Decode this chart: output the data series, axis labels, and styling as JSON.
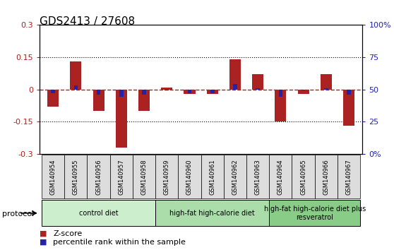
{
  "title": "GDS2413 / 27608",
  "samples": [
    "GSM140954",
    "GSM140955",
    "GSM140956",
    "GSM140957",
    "GSM140958",
    "GSM140959",
    "GSM140960",
    "GSM140961",
    "GSM140962",
    "GSM140963",
    "GSM140964",
    "GSM140965",
    "GSM140966",
    "GSM140967"
  ],
  "zscore": [
    -0.08,
    0.13,
    -0.1,
    -0.27,
    -0.1,
    0.01,
    -0.02,
    -0.02,
    0.14,
    0.07,
    -0.15,
    -0.02,
    0.07,
    -0.17
  ],
  "percentile": [
    47,
    53,
    46,
    44,
    46,
    49,
    47,
    47,
    54,
    51,
    44,
    49,
    51,
    46
  ],
  "bar_color": "#aa2222",
  "dot_color": "#2222aa",
  "ylim": [
    -0.3,
    0.3
  ],
  "yticks": [
    -0.3,
    -0.15,
    0.0,
    0.15,
    0.3
  ],
  "ytick_labels": [
    "-0.3",
    "-0.15",
    "0",
    "0.15",
    "0.3"
  ],
  "right_yticks": [
    0,
    25,
    50,
    75,
    100
  ],
  "right_ytick_labels": [
    "0%",
    "25",
    "50",
    "75",
    "100%"
  ],
  "hline_y": 0.0,
  "dotted_lines": [
    -0.15,
    0.15
  ],
  "groups": [
    {
      "label": "control diet",
      "start": 0,
      "end": 5,
      "color": "#cceecc"
    },
    {
      "label": "high-fat high-calorie diet",
      "start": 5,
      "end": 10,
      "color": "#aaddaa"
    },
    {
      "label": "high-fat high-calorie diet plus\nresveratrol",
      "start": 10,
      "end": 14,
      "color": "#88cc88"
    }
  ],
  "protocol_label": "protocol",
  "legend_zscore": "Z-score",
  "legend_percentile": "percentile rank within the sample",
  "bar_width": 0.5,
  "label_bg": "#dddddd",
  "spine_color": "#000000"
}
